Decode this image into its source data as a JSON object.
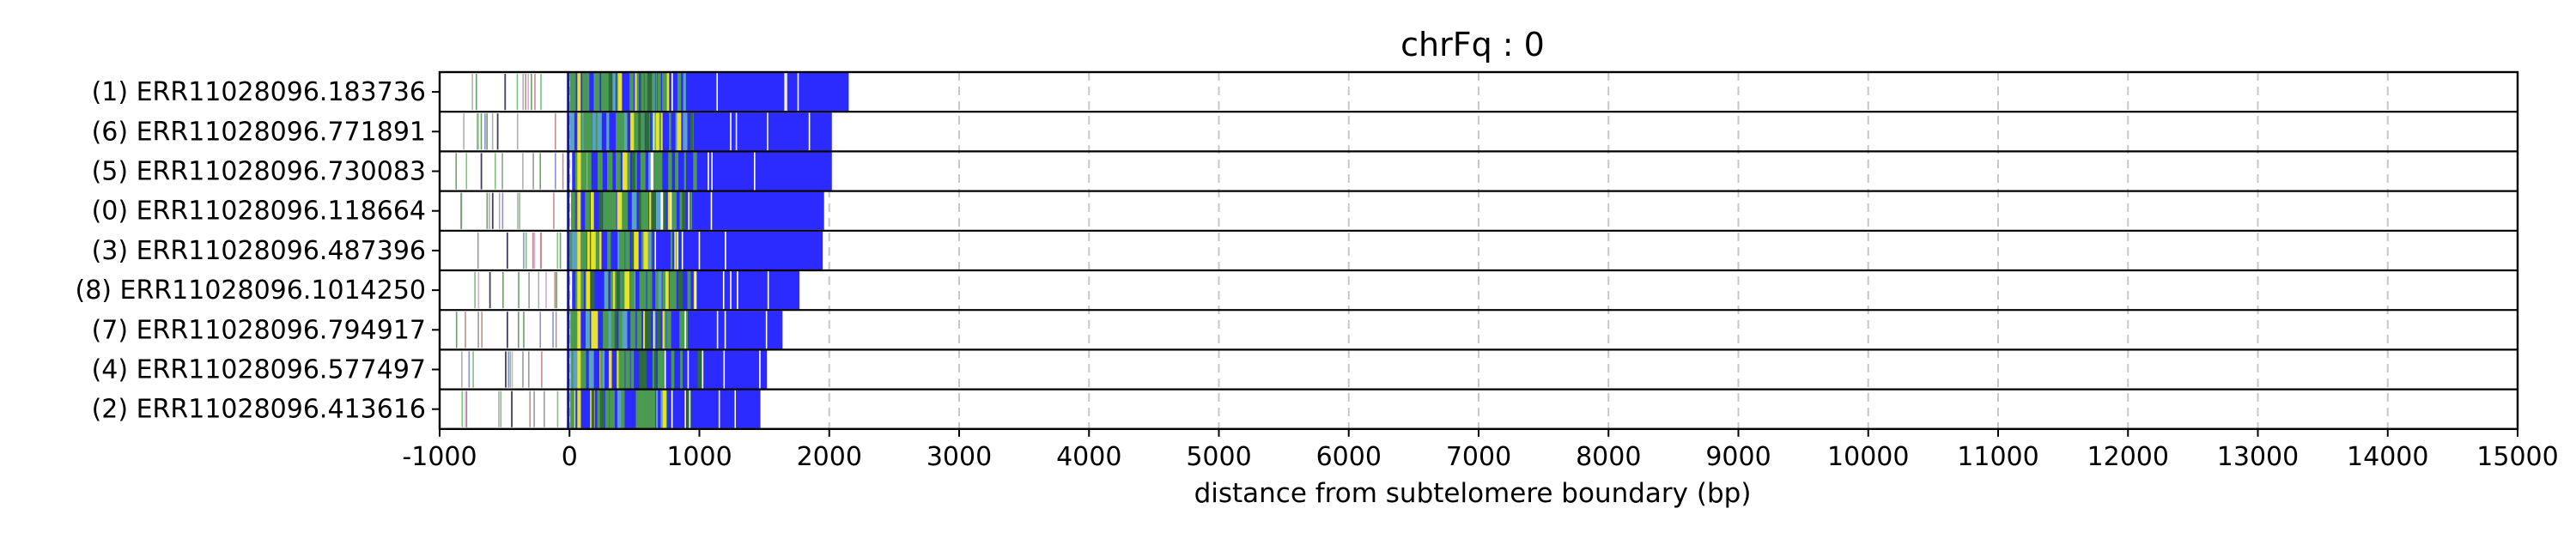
{
  "chart_data": {
    "type": "bar",
    "title": "chrFq : 0",
    "xlabel": "distance from subtelomere boundary (bp)",
    "ylabel": "",
    "xlim": [
      -1000,
      15000
    ],
    "x_ticks": [
      -1000,
      0,
      1000,
      2000,
      3000,
      4000,
      5000,
      6000,
      7000,
      8000,
      9000,
      10000,
      11000,
      12000,
      13000,
      14000,
      15000
    ],
    "grid": "vertical dashed",
    "reads": [
      {
        "label": "(1) ERR11028096.183736",
        "end": 2150
      },
      {
        "label": "(6) ERR11028096.771891",
        "end": 2020
      },
      {
        "label": "(5) ERR11028096.730083",
        "end": 2020
      },
      {
        "label": "(0) ERR11028096.118664",
        "end": 1960
      },
      {
        "label": "(3) ERR11028096.487396",
        "end": 1950
      },
      {
        "label": "(8) ERR11028096.1014250",
        "end": 1770
      },
      {
        "label": "(7) ERR11028096.794917",
        "end": 1640
      },
      {
        "label": "(4) ERR11028096.577497",
        "end": 1520
      },
      {
        "label": "(2) ERR11028096.413616",
        "end": 1470
      }
    ],
    "colors": {
      "repeat": "#2b2bff",
      "green": "#4a9a52",
      "yellow": "#e8e22a",
      "grid": "#c8c8c8",
      "axis": "#000000"
    }
  }
}
